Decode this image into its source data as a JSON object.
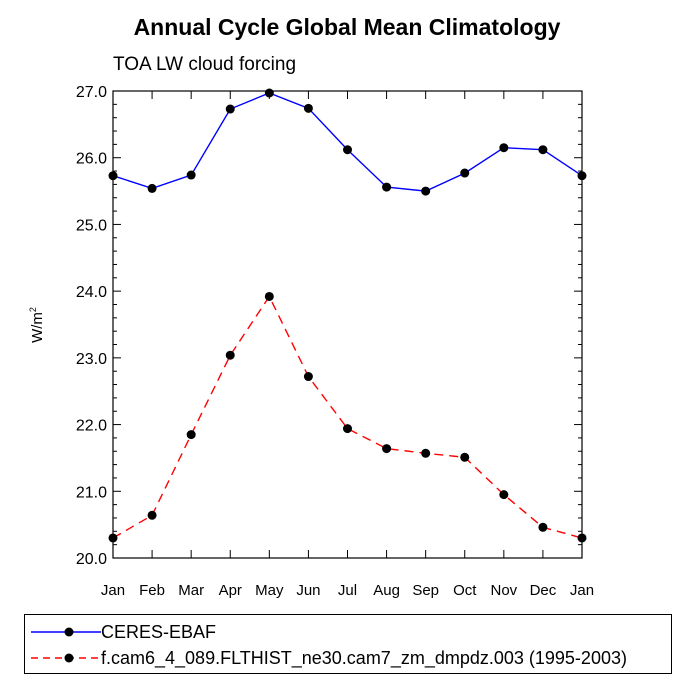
{
  "chart_data": {
    "type": "line",
    "title": "Annual Cycle Global Mean Climatology",
    "subtitle": "TOA LW cloud forcing",
    "xlabel": "",
    "ylabel": "W/m",
    "ylabel_superscript": "2",
    "categories": [
      "Jan",
      "Feb",
      "Mar",
      "Apr",
      "May",
      "Jun",
      "Jul",
      "Aug",
      "Sep",
      "Oct",
      "Nov",
      "Dec",
      "Jan"
    ],
    "ylim": [
      20.0,
      27.0
    ],
    "yticks": [
      "20.0",
      "21.0",
      "22.0",
      "23.0",
      "24.0",
      "25.0",
      "26.0",
      "27.0"
    ],
    "series": [
      {
        "name": "CERES-EBAF",
        "color": "#0000ff",
        "dash": "solid",
        "values": [
          25.73,
          25.54,
          25.74,
          26.73,
          26.97,
          26.74,
          26.12,
          25.56,
          25.5,
          25.77,
          26.15,
          26.12,
          25.73
        ]
      },
      {
        "name": "f.cam6_4_089.FLTHIST_ne30.cam7_zm_dmpdz.003 (1995-2003)",
        "color": "#ff0000",
        "dash": "dashed",
        "values": [
          20.3,
          20.64,
          21.85,
          23.04,
          23.92,
          22.72,
          21.94,
          21.64,
          21.57,
          21.51,
          20.95,
          20.46,
          20.3
        ]
      }
    ],
    "marker_color": "#000000",
    "legend_position": "bottom"
  }
}
